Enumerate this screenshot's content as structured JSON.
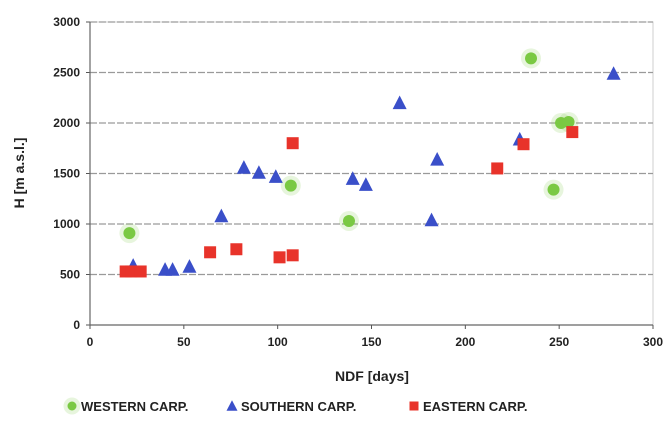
{
  "chart_data": {
    "type": "scatter",
    "xlabel": "NDF [days]",
    "ylabel": "H [m a.s.l.]",
    "xlim": [
      0,
      300
    ],
    "ylim": [
      0,
      3000
    ],
    "x_ticks": [
      0,
      50,
      100,
      150,
      200,
      250,
      300
    ],
    "y_ticks": [
      0,
      500,
      1000,
      1500,
      2000,
      2500,
      3000
    ],
    "x_tick_labels": [
      "0",
      "50",
      "100",
      "150",
      "200",
      "250",
      "300"
    ],
    "y_tick_labels": [
      "0",
      "500",
      "1000",
      "1500",
      "2000",
      "2500",
      "3000"
    ],
    "grid": "horizontal dashed",
    "legend_position": "bottom",
    "series": [
      {
        "name": "WESTERN CARP.",
        "marker": "circle",
        "color": "#7ac943",
        "points": [
          {
            "x": 21,
            "y": 910
          },
          {
            "x": 107,
            "y": 1380
          },
          {
            "x": 138,
            "y": 1030
          },
          {
            "x": 235,
            "y": 2640
          },
          {
            "x": 247,
            "y": 1340
          },
          {
            "x": 251,
            "y": 2000
          },
          {
            "x": 255,
            "y": 2010
          }
        ]
      },
      {
        "name": "SOUTHERN CARP.",
        "marker": "triangle",
        "color": "#3a4fc9",
        "points": [
          {
            "x": 23,
            "y": 590
          },
          {
            "x": 40,
            "y": 550
          },
          {
            "x": 44,
            "y": 550
          },
          {
            "x": 53,
            "y": 580
          },
          {
            "x": 70,
            "y": 1080
          },
          {
            "x": 82,
            "y": 1560
          },
          {
            "x": 90,
            "y": 1510
          },
          {
            "x": 99,
            "y": 1470
          },
          {
            "x": 140,
            "y": 1450
          },
          {
            "x": 147,
            "y": 1390
          },
          {
            "x": 165,
            "y": 2200
          },
          {
            "x": 182,
            "y": 1040
          },
          {
            "x": 185,
            "y": 1640
          },
          {
            "x": 229,
            "y": 1840
          },
          {
            "x": 279,
            "y": 2490
          }
        ]
      },
      {
        "name": "EASTERN CARP.",
        "marker": "square",
        "color": "#e8332a",
        "points": [
          {
            "x": 19,
            "y": 530
          },
          {
            "x": 22,
            "y": 530
          },
          {
            "x": 27,
            "y": 530
          },
          {
            "x": 64,
            "y": 720
          },
          {
            "x": 78,
            "y": 750
          },
          {
            "x": 101,
            "y": 670
          },
          {
            "x": 108,
            "y": 690
          },
          {
            "x": 108,
            "y": 1800
          },
          {
            "x": 217,
            "y": 1550
          },
          {
            "x": 231,
            "y": 1790
          },
          {
            "x": 257,
            "y": 1910
          }
        ]
      }
    ]
  }
}
